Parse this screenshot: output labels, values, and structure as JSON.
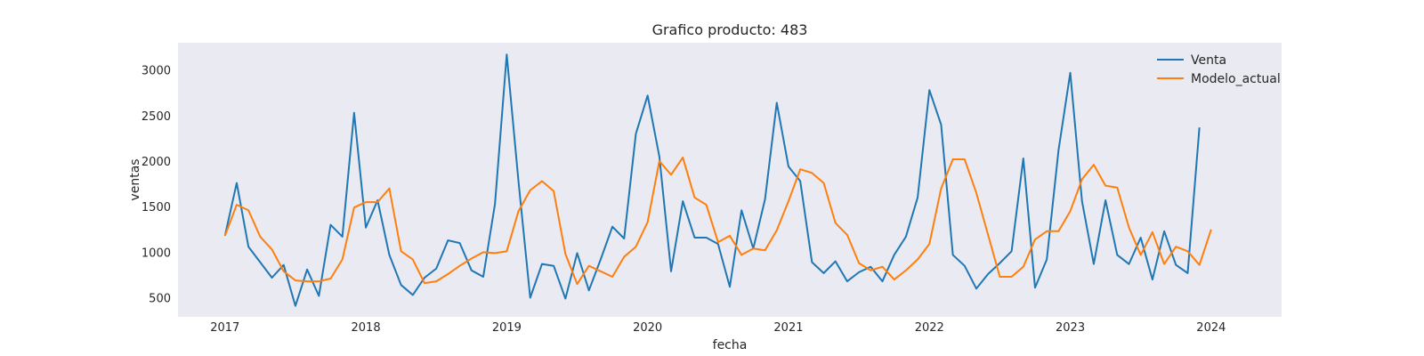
{
  "chart_data": {
    "type": "line",
    "title": "Grafico producto: 483",
    "xlabel": "fecha",
    "ylabel": "ventas",
    "x_start": "2017-01",
    "x_step": "month",
    "xlim": [
      "2016-09",
      "2024-07"
    ],
    "ylim": [
      290,
      3300
    ],
    "x_ticks": [
      "2017",
      "2018",
      "2019",
      "2020",
      "2021",
      "2022",
      "2023",
      "2024"
    ],
    "y_ticks": [
      500,
      1000,
      1500,
      2000,
      2500,
      3000
    ],
    "grid": false,
    "background": "#eaeaf2",
    "legend": "top-right",
    "series": [
      {
        "name": "Venta",
        "color": "#1f77b4",
        "values": [
          1180,
          1760,
          1060,
          890,
          720,
          860,
          410,
          810,
          520,
          1300,
          1170,
          2530,
          1270,
          1570,
          970,
          640,
          530,
          720,
          820,
          1130,
          1100,
          800,
          730,
          1530,
          3170,
          1780,
          500,
          870,
          850,
          490,
          990,
          580,
          920,
          1280,
          1150,
          2300,
          2720,
          2050,
          790,
          1560,
          1160,
          1160,
          1090,
          620,
          1460,
          1040,
          1580,
          2640,
          1940,
          1780,
          890,
          770,
          900,
          680,
          780,
          840,
          680,
          970,
          1170,
          1600,
          2780,
          2400,
          970,
          850,
          600,
          760,
          880,
          1010,
          2030,
          610,
          920,
          2120,
          2970,
          1560,
          870,
          1570,
          970,
          870,
          1160,
          700,
          1230,
          860,
          770,
          2370
        ]
      },
      {
        "name": "Modelo_actual",
        "color": "#ff7f0e",
        "values": [
          1180,
          1520,
          1460,
          1170,
          1030,
          790,
          690,
          680,
          680,
          710,
          920,
          1490,
          1550,
          1550,
          1700,
          1010,
          920,
          660,
          680,
          760,
          850,
          930,
          1000,
          990,
          1010,
          1450,
          1680,
          1780,
          1670,
          980,
          650,
          850,
          790,
          730,
          950,
          1060,
          1330,
          2000,
          1850,
          2040,
          1600,
          1520,
          1110,
          1180,
          970,
          1040,
          1020,
          1240,
          1560,
          1910,
          1870,
          1760,
          1320,
          1190,
          880,
          800,
          840,
          700,
          800,
          920,
          1090,
          1700,
          2020,
          2020,
          1650,
          1190,
          730,
          730,
          840,
          1140,
          1230,
          1230,
          1450,
          1800,
          1960,
          1730,
          1710,
          1270,
          970,
          1220,
          870,
          1060,
          1010,
          860,
          1250
        ]
      }
    ]
  }
}
